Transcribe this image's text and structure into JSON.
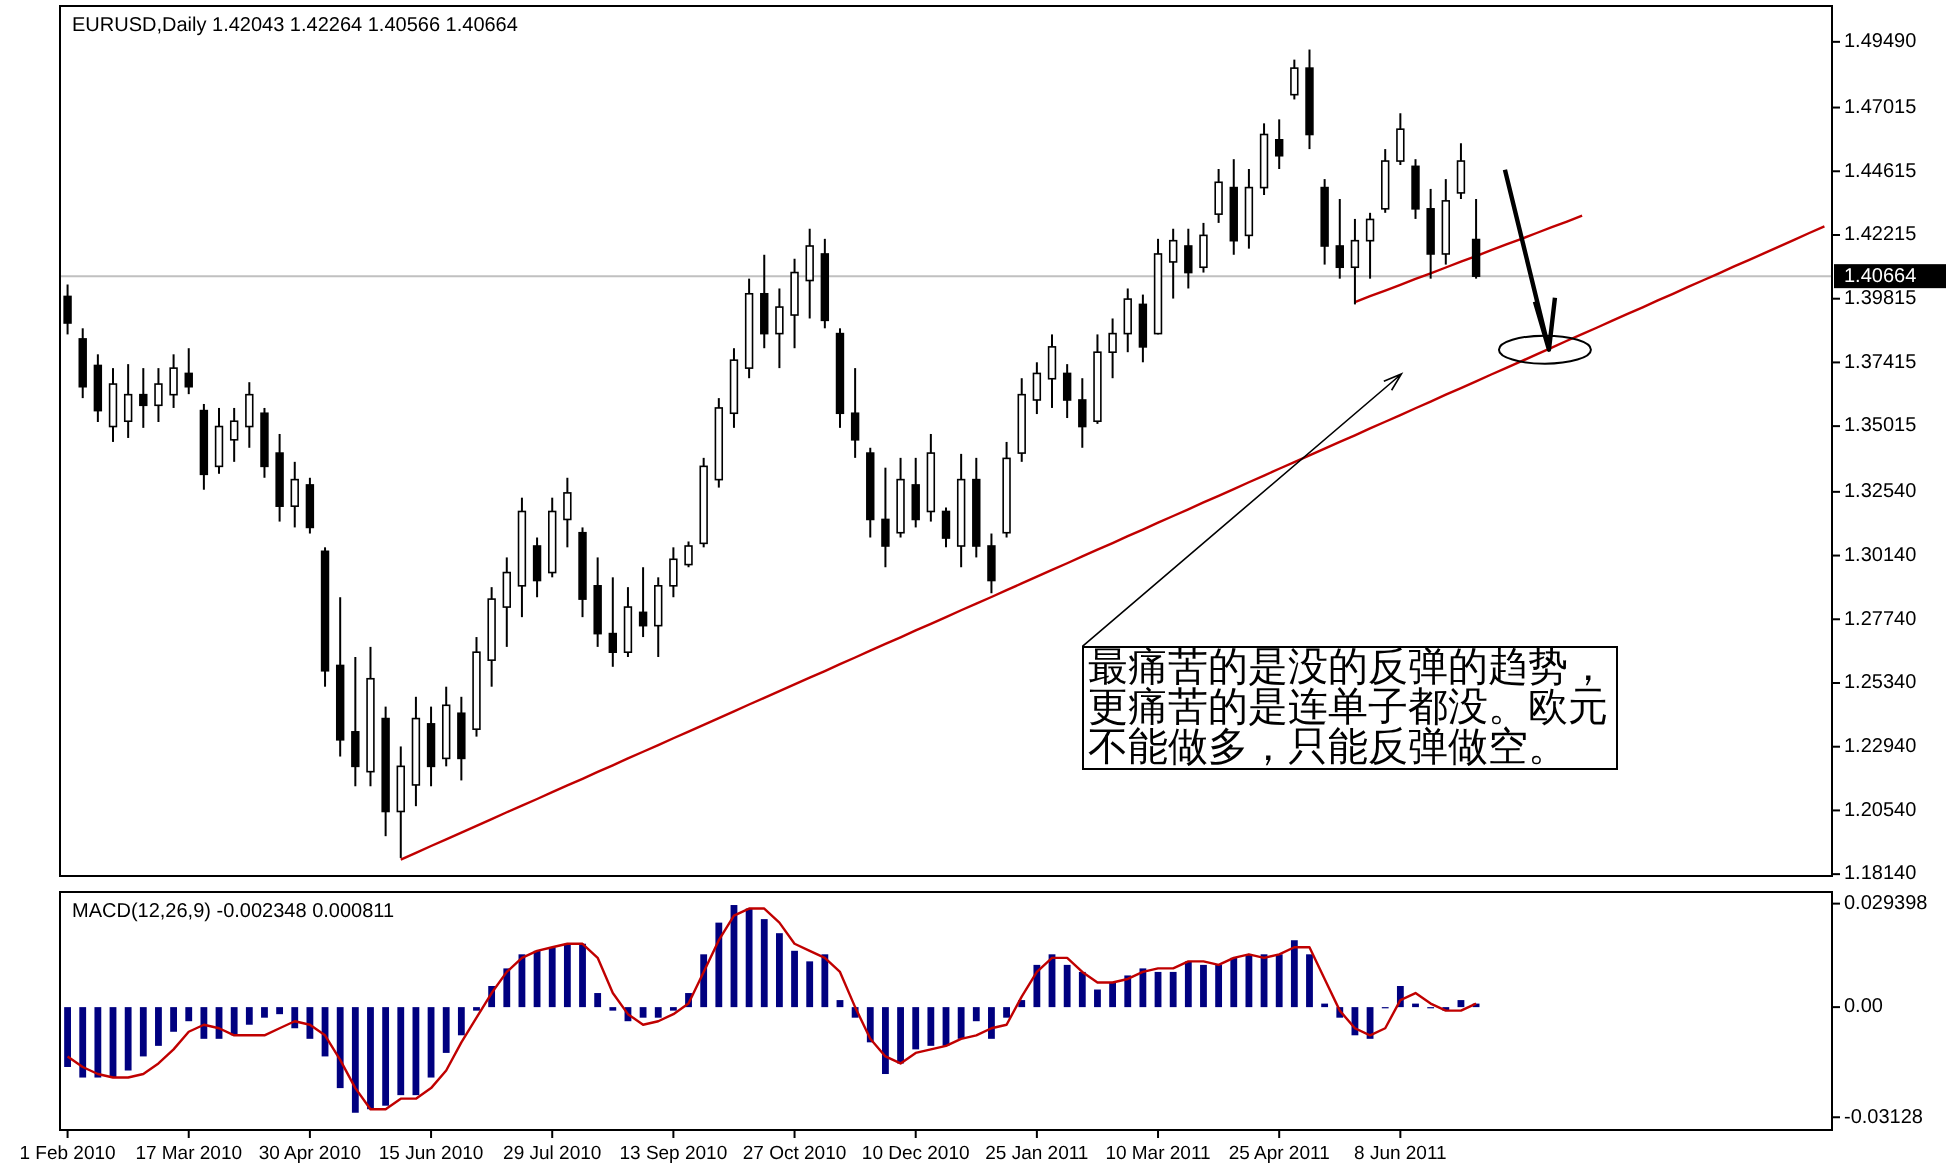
{
  "chart_data": [
    {
      "type": "candlestick",
      "title": "EURUSD,Daily 1.42043 1.42264 1.40566 1.40664",
      "tick_labels": "y",
      "ylim": [
        1.1807,
        1.5084
      ],
      "yticks": [
        {
          "value": 1.4949,
          "label": "1.49490"
        },
        {
          "value": 1.47015,
          "label": "1.47015"
        },
        {
          "value": 1.44615,
          "label": "1.44615"
        },
        {
          "value": 1.42215,
          "label": "1.42215"
        },
        {
          "value": 1.39815,
          "label": "1.39815"
        },
        {
          "value": 1.37415,
          "label": "1.37415"
        },
        {
          "value": 1.35015,
          "label": "1.35015"
        },
        {
          "value": 1.3254,
          "label": "1.32540"
        },
        {
          "value": 1.3014,
          "label": "1.30140"
        },
        {
          "value": 1.2774,
          "label": "1.27740"
        },
        {
          "value": 1.2534,
          "label": "1.25340"
        },
        {
          "value": 1.2294,
          "label": "1.22940"
        },
        {
          "value": 1.2054,
          "label": "1.20540"
        },
        {
          "value": 1.1814,
          "label": "1.18140"
        }
      ],
      "categories": [
        null,
        null,
        null,
        null,
        null,
        null,
        null,
        null,
        null,
        null,
        null,
        null,
        null,
        null,
        null,
        null,
        null,
        null,
        null,
        null,
        null,
        null,
        null,
        null,
        null,
        null,
        null,
        null,
        null,
        null,
        null,
        null,
        null,
        null,
        null,
        null,
        null,
        null,
        null,
        null,
        null,
        null,
        null,
        null,
        null,
        null,
        null,
        null,
        null,
        null,
        null,
        null,
        null,
        null,
        null,
        null,
        null,
        null,
        null,
        null,
        null,
        null,
        null,
        null,
        null,
        null,
        null,
        null,
        null,
        null,
        null,
        null,
        null,
        null,
        null,
        null,
        null,
        null,
        null,
        null,
        null,
        null,
        null,
        null,
        null,
        null,
        null,
        null,
        null,
        null,
        null,
        null,
        null,
        null,
        null,
        null,
        null,
        null,
        null,
        null,
        null,
        null,
        null,
        null,
        null,
        null,
        null,
        null,
        null,
        null,
        null,
        null,
        null,
        null,
        null,
        null,
        null
      ],
      "ohlc": [
        [
          1.399,
          1.4035,
          1.3847,
          1.389
        ],
        [
          1.383,
          1.387,
          1.3607,
          1.365
        ],
        [
          1.373,
          1.3772,
          1.3517,
          1.356
        ],
        [
          1.35,
          1.372,
          1.3442,
          1.366
        ],
        [
          1.352,
          1.3735,
          1.3457,
          1.362
        ],
        [
          1.362,
          1.372,
          1.3495,
          1.358
        ],
        [
          1.358,
          1.372,
          1.3517,
          1.366
        ],
        [
          1.362,
          1.3772,
          1.357,
          1.372
        ],
        [
          1.37,
          1.3795,
          1.3622,
          1.365
        ],
        [
          1.356,
          1.3585,
          1.3262,
          1.332
        ],
        [
          1.335,
          1.357,
          1.3322,
          1.35
        ],
        [
          1.345,
          1.357,
          1.3367,
          1.352
        ],
        [
          1.35,
          1.3667,
          1.342,
          1.362
        ],
        [
          1.355,
          1.357,
          1.3307,
          1.335
        ],
        [
          1.34,
          1.3472,
          1.3142,
          1.32
        ],
        [
          1.32,
          1.3367,
          1.312,
          1.33
        ],
        [
          1.328,
          1.3307,
          1.3097,
          1.312
        ],
        [
          1.303,
          1.3045,
          1.252,
          1.258
        ],
        [
          1.26,
          1.2857,
          1.2257,
          1.232
        ],
        [
          1.235,
          1.2632,
          1.2145,
          1.222
        ],
        [
          1.22,
          1.267,
          1.2145,
          1.255
        ],
        [
          1.24,
          1.2445,
          1.1957,
          1.205
        ],
        [
          1.205,
          1.2295,
          1.1875,
          1.222
        ],
        [
          1.215,
          1.2482,
          1.207,
          1.24
        ],
        [
          1.238,
          1.2445,
          1.2145,
          1.222
        ],
        [
          1.225,
          1.252,
          1.222,
          1.245
        ],
        [
          1.242,
          1.2482,
          1.2167,
          1.225
        ],
        [
          1.236,
          1.2707,
          1.2332,
          1.265
        ],
        [
          1.262,
          1.2895,
          1.252,
          1.285
        ],
        [
          1.282,
          1.3007,
          1.267,
          1.295
        ],
        [
          1.29,
          1.3232,
          1.2782,
          1.318
        ],
        [
          1.305,
          1.3082,
          1.2857,
          1.292
        ],
        [
          1.295,
          1.3232,
          1.2932,
          1.318
        ],
        [
          1.315,
          1.3307,
          1.3045,
          1.325
        ],
        [
          1.31,
          1.312,
          1.2782,
          1.285
        ],
        [
          1.29,
          1.3007,
          1.267,
          1.272
        ],
        [
          1.272,
          1.2932,
          1.2595,
          1.265
        ],
        [
          1.265,
          1.2895,
          1.2632,
          1.282
        ],
        [
          1.28,
          1.297,
          1.2707,
          1.275
        ],
        [
          1.275,
          1.2932,
          1.2632,
          1.29
        ],
        [
          1.29,
          1.3045,
          1.2857,
          1.3
        ],
        [
          1.298,
          1.3067,
          1.297,
          1.305
        ],
        [
          1.306,
          1.3382,
          1.3045,
          1.335
        ],
        [
          1.33,
          1.3607,
          1.327,
          1.357
        ],
        [
          1.355,
          1.3795,
          1.3495,
          1.375
        ],
        [
          1.372,
          1.4057,
          1.3682,
          1.4
        ],
        [
          1.4,
          1.4147,
          1.3795,
          1.385
        ],
        [
          1.385,
          1.402,
          1.372,
          1.395
        ],
        [
          1.392,
          1.4132,
          1.3795,
          1.408
        ],
        [
          1.405,
          1.4245,
          1.3907,
          1.418
        ],
        [
          1.415,
          1.4207,
          1.387,
          1.39
        ],
        [
          1.385,
          1.387,
          1.3495,
          1.355
        ],
        [
          1.355,
          1.372,
          1.3382,
          1.345
        ],
        [
          1.34,
          1.342,
          1.3082,
          1.315
        ],
        [
          1.315,
          1.3345,
          1.297,
          1.305
        ],
        [
          1.31,
          1.3382,
          1.3082,
          1.33
        ],
        [
          1.328,
          1.3382,
          1.312,
          1.315
        ],
        [
          1.318,
          1.3472,
          1.3142,
          1.34
        ],
        [
          1.318,
          1.3195,
          1.3045,
          1.308
        ],
        [
          1.305,
          1.3397,
          1.297,
          1.33
        ],
        [
          1.33,
          1.3382,
          1.3007,
          1.305
        ],
        [
          1.305,
          1.3097,
          1.2872,
          1.292
        ],
        [
          1.31,
          1.3442,
          1.3082,
          1.338
        ],
        [
          1.34,
          1.3682,
          1.3367,
          1.362
        ],
        [
          1.36,
          1.3742,
          1.3547,
          1.37
        ],
        [
          1.368,
          1.3847,
          1.357,
          1.38
        ],
        [
          1.37,
          1.3735,
          1.3532,
          1.36
        ],
        [
          1.36,
          1.3682,
          1.342,
          1.35
        ],
        [
          1.352,
          1.3847,
          1.351,
          1.378
        ],
        [
          1.378,
          1.3907,
          1.3682,
          1.385
        ],
        [
          1.385,
          1.402,
          1.378,
          1.398
        ],
        [
          1.396,
          1.3997,
          1.3742,
          1.38
        ],
        [
          1.385,
          1.4207,
          1.3847,
          1.415
        ],
        [
          1.412,
          1.4245,
          1.3982,
          1.42
        ],
        [
          1.418,
          1.4245,
          1.402,
          1.408
        ],
        [
          1.41,
          1.4267,
          1.408,
          1.422
        ],
        [
          1.43,
          1.447,
          1.4267,
          1.442
        ],
        [
          1.44,
          1.4507,
          1.4147,
          1.42
        ],
        [
          1.422,
          1.447,
          1.417,
          1.44
        ],
        [
          1.44,
          1.4642,
          1.4372,
          1.46
        ],
        [
          1.458,
          1.4657,
          1.447,
          1.452
        ],
        [
          1.475,
          1.4882,
          1.4732,
          1.485
        ],
        [
          1.485,
          1.492,
          1.4545,
          1.46
        ],
        [
          1.44,
          1.4432,
          1.411,
          1.418
        ],
        [
          1.418,
          1.4357,
          1.4057,
          1.41
        ],
        [
          1.41,
          1.4282,
          1.396,
          1.42
        ],
        [
          1.42,
          1.4305,
          1.4057,
          1.428
        ],
        [
          1.432,
          1.4545,
          1.4305,
          1.45
        ],
        [
          1.45,
          1.468,
          1.4485,
          1.462
        ],
        [
          1.448,
          1.4507,
          1.4282,
          1.432
        ],
        [
          1.432,
          1.4395,
          1.4057,
          1.415
        ],
        [
          1.415,
          1.4432,
          1.411,
          1.435
        ],
        [
          1.438,
          1.4567,
          1.4357,
          1.45
        ],
        [
          1.42043,
          1.4357,
          1.4057,
          1.40664
        ],
        null,
        null,
        null,
        null,
        null,
        null,
        null,
        null,
        null,
        null,
        null,
        null,
        null,
        null,
        null,
        null,
        null,
        null,
        null,
        null,
        null,
        null,
        null
      ],
      "series": [
        {
          "type": "line",
          "color": "#c00000",
          "values": [
            null,
            null,
            null,
            null,
            null,
            null,
            null,
            null,
            null,
            null,
            null,
            null,
            null,
            null,
            null,
            null,
            null,
            null,
            null,
            null,
            null,
            null,
            1.1869,
            1.1894,
            1.192,
            1.1945,
            1.197,
            1.1996,
            1.2021,
            1.2047,
            1.2072,
            1.2097,
            1.2123,
            1.2148,
            1.2173,
            1.2199,
            1.2224,
            1.225,
            1.2275,
            1.23,
            1.2326,
            1.2351,
            1.2376,
            1.2402,
            1.2427,
            1.2453,
            1.2478,
            1.2503,
            1.2529,
            1.2554,
            1.2579,
            1.2605,
            1.263,
            1.2656,
            1.2681,
            1.2706,
            1.2732,
            1.2757,
            1.2782,
            1.2808,
            1.2833,
            1.2858,
            1.2884,
            1.2909,
            1.2935,
            1.296,
            1.2985,
            1.3011,
            1.3036,
            1.3061,
            1.3087,
            1.3112,
            1.3138,
            1.3163,
            1.3188,
            1.3214,
            1.3239,
            1.3264,
            1.329,
            1.3315,
            1.3341,
            1.3366,
            1.3391,
            1.3417,
            1.3442,
            1.3467,
            1.3493,
            1.3518,
            1.3543,
            1.3569,
            1.3594,
            1.362,
            1.3645,
            1.367,
            1.3696,
            1.3721,
            1.3746,
            1.3772,
            1.3797,
            1.3823,
            1.3848,
            1.3873,
            1.3899,
            1.3924,
            1.3949,
            1.3975,
            1.4,
            1.4026,
            1.4051,
            1.4076,
            1.4102,
            1.4127,
            1.4152,
            1.4178,
            1.4203,
            1.4229,
            1.4254
          ]
        },
        {
          "type": "line",
          "color": "#c00000",
          "values": [
            null,
            null,
            null,
            null,
            null,
            null,
            null,
            null,
            null,
            null,
            null,
            null,
            null,
            null,
            null,
            null,
            null,
            null,
            null,
            null,
            null,
            null,
            null,
            null,
            null,
            null,
            null,
            null,
            null,
            null,
            null,
            null,
            null,
            null,
            null,
            null,
            null,
            null,
            null,
            null,
            null,
            null,
            null,
            null,
            null,
            null,
            null,
            null,
            null,
            null,
            null,
            null,
            null,
            null,
            null,
            null,
            null,
            null,
            null,
            null,
            null,
            null,
            null,
            null,
            null,
            null,
            null,
            null,
            null,
            null,
            null,
            null,
            null,
            null,
            null,
            null,
            null,
            null,
            null,
            null,
            null,
            null,
            null,
            null,
            null,
            1.3969,
            1.3991,
            1.4012,
            1.4034,
            1.4056,
            1.4077,
            1.4099,
            1.4121,
            1.4142,
            1.4164,
            1.4186,
            1.4207,
            1.4229,
            1.4251,
            1.4272,
            1.4294,
            null,
            null,
            null,
            null,
            null,
            null,
            null,
            null,
            null,
            null,
            null,
            null,
            null,
            null,
            null,
            null
          ]
        }
      ],
      "ref_lines": [
        {
          "axis": "y",
          "value": 1.40664,
          "label": "1.40664",
          "color": "#c0c0c0"
        }
      ],
      "annotations": [
        "最痛苦的是没的反弹的趋势，更痛苦的是连单子都没。欧元不能做多，只能反弹做空。"
      ]
    },
    {
      "type": "bar",
      "title": "MACD(12,26,9) -0.002348 0.000811",
      "ylim": [
        -0.0349,
        0.0327
      ],
      "yticks": [
        {
          "value": 0.029398,
          "label": "0.029398"
        },
        {
          "value": 0,
          "label": "0.00"
        },
        {
          "value": -0.03128,
          "label": "-0.03128"
        }
      ],
      "categories": [
        "1 Feb 2010",
        null,
        null,
        null,
        null,
        null,
        null,
        null,
        "17 Mar 2010",
        null,
        null,
        null,
        null,
        null,
        null,
        null,
        "30 Apr 2010",
        null,
        null,
        null,
        null,
        null,
        null,
        null,
        "15 Jun 2010",
        null,
        null,
        null,
        null,
        null,
        null,
        null,
        "29 Jul 2010",
        null,
        null,
        null,
        null,
        null,
        null,
        null,
        "13 Sep 2010",
        null,
        null,
        null,
        null,
        null,
        null,
        null,
        "27 Oct 2010",
        null,
        null,
        null,
        null,
        null,
        null,
        null,
        "10 Dec 2010",
        null,
        null,
        null,
        null,
        null,
        null,
        null,
        "25 Jan 2011",
        null,
        null,
        null,
        null,
        null,
        null,
        null,
        "10 Mar 2011",
        null,
        null,
        null,
        null,
        null,
        null,
        null,
        "25 Apr 2011",
        null,
        null,
        null,
        null,
        null,
        null,
        null,
        "8 Jun 2011",
        null,
        null,
        null,
        null,
        null,
        null,
        null,
        null,
        null,
        null,
        null,
        null,
        null,
        null,
        null,
        null,
        null,
        null,
        null,
        null,
        null,
        null,
        null,
        null,
        null,
        null,
        null,
        null
      ],
      "series": [
        {
          "type": "bar",
          "color": "#000080",
          "values": [
            -0.017,
            -0.02,
            -0.02,
            -0.02,
            -0.018,
            -0.014,
            -0.011,
            -0.007,
            -0.004,
            -0.009,
            -0.009,
            -0.008,
            -0.005,
            -0.003,
            -0.002,
            -0.006,
            -0.009,
            -0.014,
            -0.023,
            -0.03,
            -0.029,
            -0.028,
            -0.025,
            -0.025,
            -0.02,
            -0.013,
            -0.008,
            -0.001,
            0.006,
            0.011,
            0.015,
            0.016,
            0.017,
            0.018,
            0.018,
            0.004,
            -0.001,
            -0.004,
            -0.003,
            -0.003,
            -0.001,
            0.004,
            0.015,
            0.024,
            0.029,
            0.028,
            0.025,
            0.021,
            0.016,
            0.013,
            0.015,
            0.002,
            -0.003,
            -0.01,
            -0.019,
            -0.016,
            -0.012,
            -0.011,
            -0.011,
            -0.009,
            -0.004,
            -0.009,
            -0.003,
            0.002,
            0.012,
            0.015,
            0.012,
            0.01,
            0.005,
            0.007,
            0.009,
            0.011,
            0.01,
            0.01,
            0.013,
            0.012,
            0.012,
            0.014,
            0.015,
            0.015,
            0.015,
            0.019,
            0.015,
            0.001,
            -0.003,
            -0.008,
            -0.009,
            0.0,
            0.006,
            0.001,
            0.0,
            -0.001,
            0.002,
            0.001,
            null,
            null,
            null,
            null,
            null,
            null,
            null,
            null,
            null,
            null,
            null,
            null,
            null,
            null,
            null,
            null,
            null,
            null,
            null,
            null,
            null,
            null,
            null
          ]
        },
        {
          "type": "line",
          "color": "#c00000",
          "values": [
            -0.014,
            -0.017,
            -0.019,
            -0.02,
            -0.02,
            -0.019,
            -0.016,
            -0.012,
            -0.007,
            -0.005,
            -0.006,
            -0.008,
            -0.008,
            -0.008,
            -0.006,
            -0.004,
            -0.005,
            -0.008,
            -0.015,
            -0.023,
            -0.029,
            -0.029,
            -0.026,
            -0.026,
            -0.023,
            -0.018,
            -0.01,
            -0.003,
            0.004,
            0.01,
            0.014,
            0.016,
            0.017,
            0.018,
            0.018,
            0.014,
            0.004,
            -0.002,
            -0.005,
            -0.004,
            -0.002,
            0.001,
            0.01,
            0.019,
            0.026,
            0.028,
            0.028,
            0.024,
            0.018,
            0.016,
            0.014,
            0.01,
            0.0,
            -0.009,
            -0.014,
            -0.016,
            -0.013,
            -0.012,
            -0.011,
            -0.009,
            -0.008,
            -0.006,
            -0.005,
            0.003,
            0.01,
            0.014,
            0.014,
            0.01,
            0.007,
            0.007,
            0.008,
            0.01,
            0.011,
            0.011,
            0.013,
            0.013,
            0.012,
            0.014,
            0.015,
            0.014,
            0.015,
            0.017,
            0.017,
            0.008,
            -0.001,
            -0.006,
            -0.008,
            -0.006,
            0.002,
            0.004,
            0.001,
            -0.001,
            -0.001,
            0.001,
            null,
            null,
            null,
            null,
            null,
            null,
            null,
            null,
            null,
            null,
            null,
            null,
            null,
            null,
            null,
            null,
            null,
            null,
            null,
            null,
            null,
            null,
            null
          ]
        }
      ]
    }
  ]
}
